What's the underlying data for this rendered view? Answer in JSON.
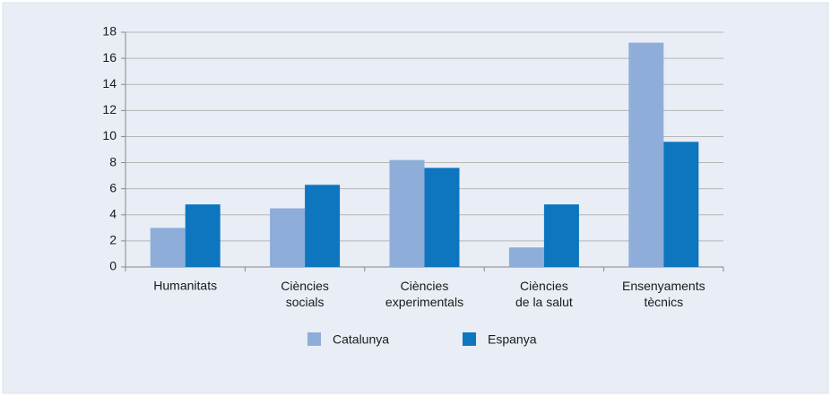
{
  "chart_data": {
    "type": "bar",
    "categories": [
      "Humanitats",
      "Ciències\nsocials",
      "Ciències\nexperimentals",
      "Ciències\nde la salut",
      "Ensenyaments\ntècnics"
    ],
    "series": [
      {
        "name": "Catalunya",
        "color": "#8eadd9",
        "values": [
          3.0,
          4.5,
          8.2,
          1.5,
          17.2
        ]
      },
      {
        "name": "Espanya",
        "color": "#0e76bf",
        "values": [
          4.8,
          6.3,
          7.6,
          4.8,
          9.6
        ]
      }
    ],
    "ylim": [
      0,
      18
    ],
    "yticks": [
      0,
      2,
      4,
      6,
      8,
      10,
      12,
      14,
      16,
      18
    ],
    "grid": true,
    "legend": "bottom"
  }
}
